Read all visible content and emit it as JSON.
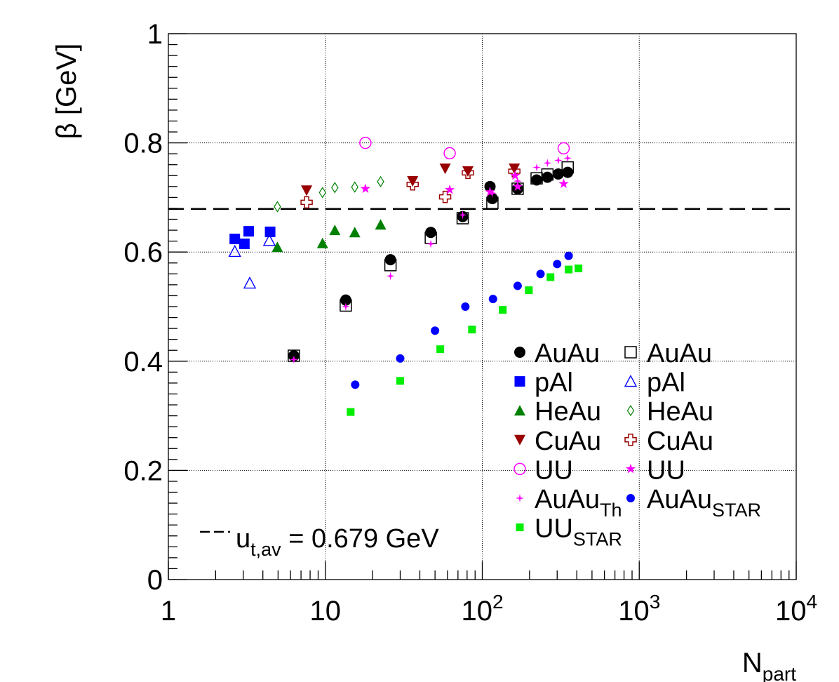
{
  "chart_data": {
    "type": "scatter",
    "x_scale": "log",
    "xlim": [
      1,
      10000
    ],
    "ylim": [
      0,
      1
    ],
    "grid": true,
    "x_tick_labels": [
      {
        "value": 1,
        "base": "1",
        "exp": ""
      },
      {
        "value": 10,
        "base": "10",
        "exp": ""
      },
      {
        "value": 100,
        "base": "10",
        "exp": "2"
      },
      {
        "value": 1000,
        "base": "10",
        "exp": "3"
      },
      {
        "value": 10000,
        "base": "10",
        "exp": "4"
      }
    ],
    "y_ticks": [
      0,
      0.2,
      0.4,
      0.6,
      0.8,
      1
    ],
    "y_tick_labels": [
      "0",
      "0.2",
      "0.4",
      "0.6",
      "0.8",
      "1"
    ],
    "ylabel": "β [GeV]",
    "xlabel": {
      "main": "N",
      "sub": "part"
    },
    "reference_line": {
      "y": 0.679,
      "label_main": "u",
      "label_sub": "t,av",
      "label_rest": " = 0.679 GeV"
    },
    "legend_position": "right",
    "series": [
      {
        "name": "AuAu",
        "name_sub": "",
        "marker": "circle-filled",
        "color": "#000000",
        "points": [
          [
            6.3,
            0.41
          ],
          [
            13.5,
            0.512
          ],
          [
            26,
            0.586
          ],
          [
            47,
            0.636
          ],
          [
            75,
            0.665
          ],
          [
            112,
            0.72
          ],
          [
            116,
            0.698
          ],
          [
            168,
            0.716
          ],
          [
            222,
            0.732
          ],
          [
            260,
            0.737
          ],
          [
            305,
            0.743
          ],
          [
            350,
            0.746
          ]
        ]
      },
      {
        "name": "AuAu",
        "name_sub": "",
        "marker": "square-open",
        "color": "#000000",
        "points": [
          [
            6.3,
            0.41
          ],
          [
            13.5,
            0.502
          ],
          [
            26,
            0.576
          ],
          [
            47,
            0.626
          ],
          [
            75,
            0.662
          ],
          [
            116,
            0.69
          ],
          [
            168,
            0.716
          ],
          [
            222,
            0.735
          ],
          [
            260,
            0.742
          ],
          [
            350,
            0.755
          ]
        ]
      },
      {
        "name": "pAl",
        "name_sub": "",
        "marker": "square-filled",
        "color": "#0000ff",
        "points": [
          [
            2.65,
            0.624
          ],
          [
            3.05,
            0.615
          ],
          [
            3.25,
            0.638
          ],
          [
            4.45,
            0.637
          ]
        ]
      },
      {
        "name": "pAl",
        "name_sub": "",
        "marker": "triangle-open",
        "color": "#0000ff",
        "points": [
          [
            2.65,
            0.601
          ],
          [
            3.3,
            0.543
          ],
          [
            4.4,
            0.621
          ]
        ]
      },
      {
        "name": "HeAu",
        "name_sub": "",
        "marker": "triangle-filled",
        "color": "#008000",
        "points": [
          [
            4.95,
            0.609
          ],
          [
            9.6,
            0.616
          ],
          [
            11.5,
            0.64
          ],
          [
            15.4,
            0.636
          ],
          [
            22.5,
            0.65
          ]
        ]
      },
      {
        "name": "HeAu",
        "name_sub": "",
        "marker": "diamond-open",
        "color": "#008000",
        "points": [
          [
            4.95,
            0.683
          ],
          [
            9.6,
            0.709
          ],
          [
            11.5,
            0.718
          ],
          [
            15.4,
            0.719
          ],
          [
            22.5,
            0.729
          ]
        ]
      },
      {
        "name": "CuAu",
        "name_sub": "",
        "marker": "triangle-down-filled",
        "color": "#990000",
        "points": [
          [
            7.6,
            0.713
          ],
          [
            36,
            0.73
          ],
          [
            58,
            0.753
          ],
          [
            81,
            0.748
          ],
          [
            160,
            0.753
          ]
        ]
      },
      {
        "name": "CuAu",
        "name_sub": "",
        "marker": "cross-open",
        "color": "#990000",
        "points": [
          [
            7.6,
            0.691
          ],
          [
            36,
            0.724
          ],
          [
            58,
            0.701
          ],
          [
            81,
            0.745
          ],
          [
            160,
            0.748
          ]
        ]
      },
      {
        "name": "UU",
        "name_sub": "",
        "marker": "circle-open",
        "color": "#ff00ff",
        "points": [
          [
            18,
            0.8
          ],
          [
            62,
            0.781
          ],
          [
            330,
            0.79
          ]
        ]
      },
      {
        "name": "UU",
        "name_sub": "",
        "marker": "star-filled",
        "color": "#ff00ff",
        "points": [
          [
            18,
            0.716
          ],
          [
            62,
            0.714
          ],
          [
            112,
            0.71
          ],
          [
            162,
            0.74
          ],
          [
            168,
            0.72
          ],
          [
            330,
            0.725
          ]
        ]
      },
      {
        "name": "AuAu",
        "name_sub": "Th",
        "marker": "star4-filled",
        "color": "#ff00ff",
        "points": [
          [
            6.3,
            0.403
          ],
          [
            13.5,
            0.5
          ],
          [
            26,
            0.556
          ],
          [
            47,
            0.615
          ],
          [
            75,
            0.668
          ],
          [
            116,
            0.708
          ],
          [
            168,
            0.73
          ],
          [
            222,
            0.755
          ],
          [
            260,
            0.763
          ],
          [
            305,
            0.768
          ],
          [
            350,
            0.772
          ]
        ]
      },
      {
        "name": "AuAu",
        "name_sub": "STAR",
        "marker": "circle-filled-small",
        "color": "#0000ff",
        "points": [
          [
            15.5,
            0.357
          ],
          [
            30,
            0.405
          ],
          [
            50,
            0.456
          ],
          [
            78,
            0.5
          ],
          [
            117,
            0.514
          ],
          [
            168,
            0.538
          ],
          [
            235,
            0.56
          ],
          [
            300,
            0.578
          ],
          [
            355,
            0.593
          ]
        ]
      },
      {
        "name": "UU",
        "name_sub": "STAR",
        "marker": "square-filled-small",
        "color": "#00ee00",
        "points": [
          [
            14.5,
            0.307
          ],
          [
            30,
            0.364
          ],
          [
            54,
            0.422
          ],
          [
            86,
            0.458
          ],
          [
            135,
            0.494
          ],
          [
            198,
            0.53
          ],
          [
            272,
            0.554
          ],
          [
            355,
            0.568
          ],
          [
            410,
            0.57
          ]
        ]
      }
    ]
  }
}
